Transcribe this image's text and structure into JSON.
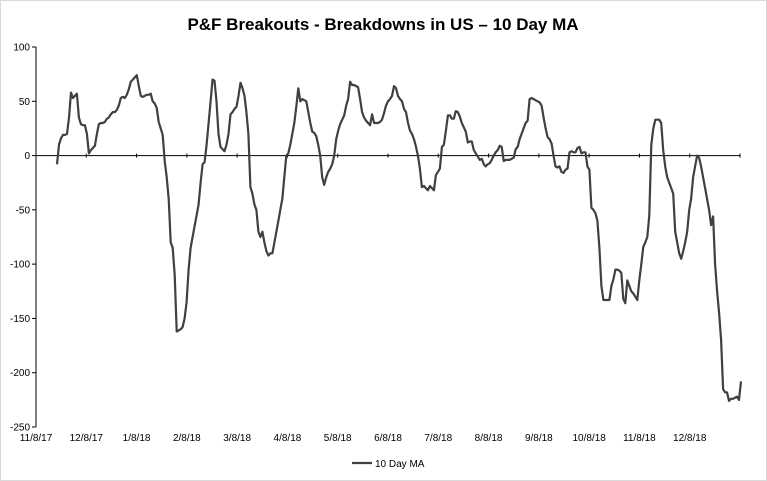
{
  "chart_data": {
    "type": "line",
    "title": "P&F Breakouts - Breakdowns in US – 10 Day MA",
    "xlabel": "",
    "ylabel": "",
    "ylim": [
      -250,
      100
    ],
    "y_ticks": [
      100,
      50,
      0,
      -50,
      -100,
      -150,
      -200,
      -250
    ],
    "x_tick_labels": [
      "11/8/17",
      "12/8/17",
      "1/8/18",
      "2/8/18",
      "3/8/18",
      "4/8/18",
      "5/8/18",
      "6/8/18",
      "7/8/18",
      "8/8/18",
      "9/8/18",
      "10/8/18",
      "11/8/18",
      "12/8/18"
    ],
    "grid": false,
    "legend_position": "bottom",
    "series": [
      {
        "name": "10 Day MA",
        "color": "#404040",
        "values": [
          -8,
          10,
          16,
          19,
          19,
          20,
          35,
          58,
          53,
          55,
          57,
          35,
          29,
          28,
          28,
          20,
          2,
          5,
          7,
          9,
          20,
          29,
          30,
          30,
          31,
          34,
          35,
          38,
          40,
          40,
          42,
          46,
          53,
          54,
          53,
          56,
          61,
          68,
          70,
          72,
          74,
          64,
          55,
          54,
          55,
          56,
          56,
          57,
          50,
          48,
          44,
          31,
          25,
          19,
          -5,
          -20,
          -40,
          -80,
          -85,
          -110,
          -162,
          -161,
          -160,
          -158,
          -150,
          -135,
          -105,
          -85,
          -75,
          -65,
          -55,
          -45,
          -25,
          -8,
          -6,
          10,
          30,
          50,
          70,
          69,
          50,
          20,
          8,
          6,
          4,
          10,
          20,
          38,
          40,
          43,
          45,
          55,
          67,
          62,
          55,
          40,
          20,
          -29,
          -35,
          -45,
          -50,
          -70,
          -75,
          -70,
          -80,
          -88,
          -92,
          -90,
          -90,
          -80,
          -70,
          -60,
          -50,
          -40,
          -20,
          0,
          2,
          10,
          20,
          30,
          45,
          62,
          50,
          52,
          51,
          50,
          40,
          30,
          22,
          21,
          18,
          10,
          0,
          -20,
          -27,
          -20,
          -15,
          -12,
          -8,
          0,
          15,
          23,
          29,
          33,
          37,
          46,
          52,
          68,
          65,
          65,
          64,
          63,
          52,
          40,
          35,
          32,
          30,
          28,
          38,
          30,
          30,
          30,
          31,
          33,
          39,
          46,
          50,
          52,
          55,
          64,
          62,
          55,
          52,
          50,
          43,
          40,
          30,
          23,
          20,
          15,
          8,
          0,
          -12,
          -29,
          -28,
          -30,
          -32,
          -28,
          -30,
          -32,
          -18,
          -15,
          -12,
          8,
          10,
          23,
          37,
          37,
          34,
          34,
          41,
          40,
          36,
          30,
          26,
          22,
          12,
          13,
          13,
          5,
          2,
          -1,
          -4,
          -3,
          -8,
          -10,
          -8,
          -7,
          -4,
          0,
          3,
          5,
          9,
          8,
          -5,
          -4,
          -4,
          -4,
          -3,
          -2,
          6,
          8,
          15,
          20,
          25,
          30,
          32,
          52,
          53,
          52,
          51,
          50,
          49,
          46,
          35,
          25,
          17,
          15,
          11,
          0,
          -10,
          -11,
          -10,
          -15,
          -16,
          -13,
          -12,
          3,
          4,
          3,
          3,
          7,
          8,
          2,
          3,
          3,
          -10,
          -13,
          -48,
          -50,
          -53,
          -60,
          -85,
          -120,
          -133,
          -133,
          -133,
          -133,
          -120,
          -114,
          -105,
          -105,
          -106,
          -108,
          -132,
          -136,
          -115,
          -120,
          -125,
          -127,
          -130,
          -133,
          -115,
          -100,
          -84,
          -80,
          -75,
          -55,
          10,
          25,
          33,
          33,
          33,
          30,
          5,
          -10,
          -20,
          -25,
          -30,
          -35,
          -70,
          -80,
          -90,
          -95,
          -88,
          -80,
          -70,
          -50,
          -40,
          -20,
          -10,
          0,
          -2,
          -10,
          -20,
          -30,
          -40,
          -50,
          -64,
          -56,
          -100,
          -125,
          -145,
          -170,
          -215,
          -218,
          -218,
          -226,
          -224,
          -224,
          -223,
          -222,
          -225,
          -208
        ]
      }
    ]
  }
}
